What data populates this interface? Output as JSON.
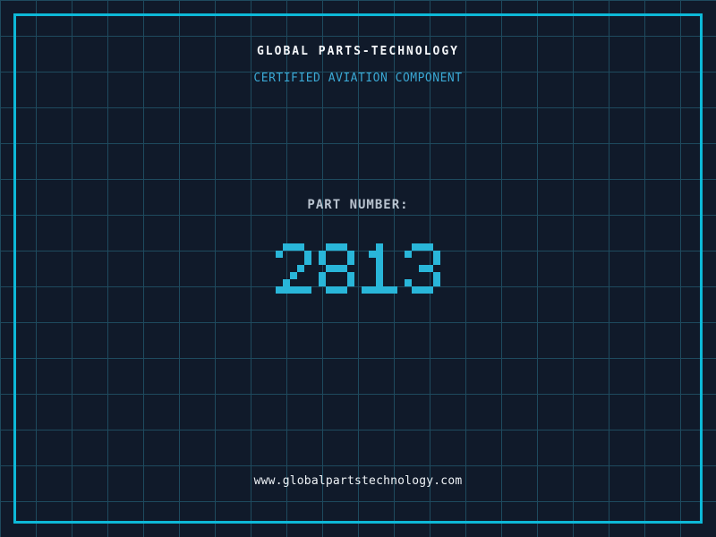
{
  "header": {
    "title": "GLOBAL PARTS-TECHNOLOGY",
    "subtitle": "CERTIFIED AVIATION COMPONENT"
  },
  "part": {
    "label": "PART NUMBER:",
    "number": "2813"
  },
  "footer": {
    "website": "www.globalpartstechnology.com"
  },
  "colors": {
    "background": "#101a2a",
    "grid_line": "#1e4a5e",
    "frame_border": "#0db9d8",
    "title_text": "#f5f7fa",
    "subtitle_text": "#3aa8d4",
    "part_label_text": "#b9c3cf",
    "part_number_text": "#29b6d9",
    "website_text": "#eef2f6"
  }
}
